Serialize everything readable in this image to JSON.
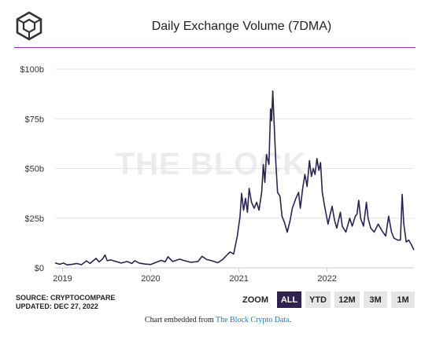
{
  "header": {
    "title": "Daily Exchange Volume (7DMA)"
  },
  "colors": {
    "line": "#2e2350",
    "accent_rule": "#9b30c8",
    "grid": "#e6e6e6",
    "active_button": "#2e2350",
    "link": "#1a7fbf"
  },
  "watermark": "THE BLOCK",
  "chart_data": {
    "type": "line",
    "title": "Daily Exchange Volume (7DMA)",
    "xlabel": "",
    "ylabel": "",
    "x_ticks": [
      "2019",
      "2020",
      "2021",
      "2022"
    ],
    "y_ticks": [
      "$0",
      "$25b",
      "$50b",
      "$75b",
      "$100b"
    ],
    "ylim": [
      0,
      100
    ],
    "xlim": [
      "2018-12-01",
      "2022-12-27"
    ],
    "grid": true,
    "legend": "none",
    "series": [
      {
        "values": [
          [
            "2018-12-01",
            2.5
          ],
          [
            "2018-12-20",
            1.8
          ],
          [
            "2019-01-05",
            2.4
          ],
          [
            "2019-01-20",
            1.5
          ],
          [
            "2019-02-10",
            1.8
          ],
          [
            "2019-03-01",
            2.2
          ],
          [
            "2019-03-20",
            1.6
          ],
          [
            "2019-04-10",
            3.5
          ],
          [
            "2019-04-25",
            2.2
          ],
          [
            "2019-05-10",
            3.8
          ],
          [
            "2019-05-20",
            4.8
          ],
          [
            "2019-06-01",
            3.0
          ],
          [
            "2019-06-15",
            4.4
          ],
          [
            "2019-06-26",
            6.5
          ],
          [
            "2019-07-05",
            3.6
          ],
          [
            "2019-07-20",
            4.0
          ],
          [
            "2019-08-10",
            3.2
          ],
          [
            "2019-09-01",
            2.4
          ],
          [
            "2019-09-25",
            3.2
          ],
          [
            "2019-10-15",
            2.2
          ],
          [
            "2019-10-27",
            3.6
          ],
          [
            "2019-11-15",
            2.4
          ],
          [
            "2019-12-10",
            1.9
          ],
          [
            "2020-01-01",
            1.7
          ],
          [
            "2020-01-20",
            2.6
          ],
          [
            "2020-02-14",
            3.8
          ],
          [
            "2020-03-01",
            3.0
          ],
          [
            "2020-03-13",
            5.6
          ],
          [
            "2020-04-01",
            3.2
          ],
          [
            "2020-05-01",
            4.4
          ],
          [
            "2020-05-15",
            3.8
          ],
          [
            "2020-06-15",
            2.8
          ],
          [
            "2020-07-15",
            3.2
          ],
          [
            "2020-08-01",
            5.8
          ],
          [
            "2020-08-20",
            4.2
          ],
          [
            "2020-09-10",
            3.6
          ],
          [
            "2020-10-05",
            2.6
          ],
          [
            "2020-10-25",
            4.2
          ],
          [
            "2020-11-10",
            6.2
          ],
          [
            "2020-11-25",
            8.0
          ],
          [
            "2020-12-10",
            7.0
          ],
          [
            "2020-12-25",
            16.0
          ],
          [
            "2021-01-05",
            25.5
          ],
          [
            "2021-01-12",
            37.5
          ],
          [
            "2021-01-20",
            29.0
          ],
          [
            "2021-01-28",
            35.0
          ],
          [
            "2021-02-05",
            28.0
          ],
          [
            "2021-02-12",
            40.0
          ],
          [
            "2021-02-22",
            33.0
          ],
          [
            "2021-03-05",
            30.0
          ],
          [
            "2021-03-15",
            33.0
          ],
          [
            "2021-03-25",
            29.0
          ],
          [
            "2021-04-05",
            38.0
          ],
          [
            "2021-04-12",
            52.0
          ],
          [
            "2021-04-18",
            43.0
          ],
          [
            "2021-04-25",
            57.0
          ],
          [
            "2021-05-05",
            52.0
          ],
          [
            "2021-05-12",
            80.0
          ],
          [
            "2021-05-16",
            74.0
          ],
          [
            "2021-05-21",
            89.0
          ],
          [
            "2021-05-27",
            72.0
          ],
          [
            "2021-06-03",
            52.0
          ],
          [
            "2021-06-10",
            38.0
          ],
          [
            "2021-06-20",
            36.0
          ],
          [
            "2021-06-28",
            26.0
          ],
          [
            "2021-07-08",
            23.0
          ],
          [
            "2021-07-20",
            18.0
          ],
          [
            "2021-08-01",
            24.0
          ],
          [
            "2021-08-10",
            30.0
          ],
          [
            "2021-08-25",
            35.0
          ],
          [
            "2021-09-05",
            38.0
          ],
          [
            "2021-09-12",
            30.0
          ],
          [
            "2021-09-22",
            40.0
          ],
          [
            "2021-10-01",
            47.0
          ],
          [
            "2021-10-10",
            41.0
          ],
          [
            "2021-10-20",
            54.0
          ],
          [
            "2021-10-28",
            46.0
          ],
          [
            "2021-11-05",
            50.0
          ],
          [
            "2021-11-12",
            47.0
          ],
          [
            "2021-11-20",
            55.0
          ],
          [
            "2021-11-28",
            49.0
          ],
          [
            "2021-12-05",
            53.0
          ],
          [
            "2021-12-12",
            38.0
          ],
          [
            "2021-12-22",
            31.0
          ],
          [
            "2022-01-05",
            22.0
          ],
          [
            "2022-01-12",
            26.0
          ],
          [
            "2022-01-22",
            31.0
          ],
          [
            "2022-02-01",
            24.0
          ],
          [
            "2022-02-10",
            20.0
          ],
          [
            "2022-02-25",
            28.0
          ],
          [
            "2022-03-05",
            21.0
          ],
          [
            "2022-03-20",
            18.0
          ],
          [
            "2022-04-05",
            25.0
          ],
          [
            "2022-04-15",
            21.0
          ],
          [
            "2022-04-28",
            26.0
          ],
          [
            "2022-05-05",
            27.0
          ],
          [
            "2022-05-12",
            34.0
          ],
          [
            "2022-05-20",
            25.0
          ],
          [
            "2022-06-01",
            21.0
          ],
          [
            "2022-06-13",
            33.0
          ],
          [
            "2022-06-20",
            25.0
          ],
          [
            "2022-07-01",
            20.0
          ],
          [
            "2022-07-15",
            18.0
          ],
          [
            "2022-08-01",
            22.0
          ],
          [
            "2022-08-15",
            19.0
          ],
          [
            "2022-09-01",
            16.0
          ],
          [
            "2022-09-13",
            26.0
          ],
          [
            "2022-09-25",
            18.0
          ],
          [
            "2022-10-05",
            15.0
          ],
          [
            "2022-10-20",
            14.0
          ],
          [
            "2022-11-01",
            14.0
          ],
          [
            "2022-11-08",
            37.0
          ],
          [
            "2022-11-15",
            22.0
          ],
          [
            "2022-11-25",
            13.0
          ],
          [
            "2022-12-05",
            14.0
          ],
          [
            "2022-12-15",
            12.0
          ],
          [
            "2022-12-27",
            9.0
          ]
        ]
      }
    ]
  },
  "footer": {
    "source": "SOURCE: CRYPTOCOMPARE",
    "updated": "UPDATED: DEC 27, 2022",
    "zoom_label": "ZOOM",
    "zoom_buttons": [
      "ALL",
      "YTD",
      "12M",
      "3M",
      "1M"
    ],
    "embed_prefix": "Chart embedded from",
    "embed_link": "The Block Crypto Data",
    "embed_suffix": "."
  }
}
